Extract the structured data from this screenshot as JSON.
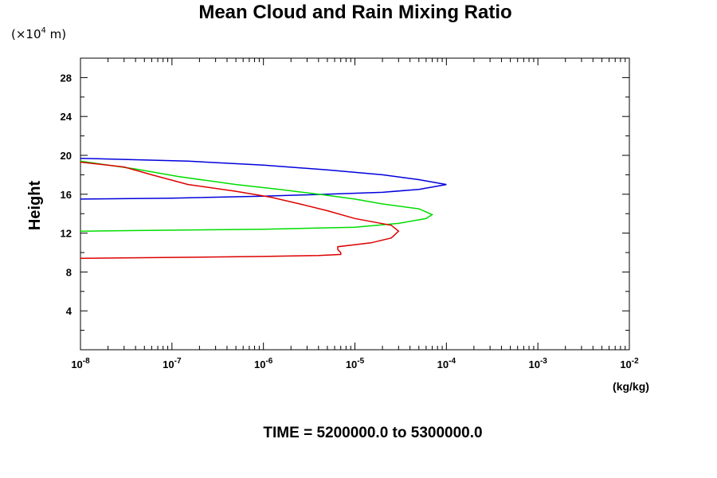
{
  "chart_data": {
    "type": "line",
    "title": "Mean Cloud and Rain Mixing Ratio",
    "y_units_label": "(×10",
    "y_units_exp": "4",
    "y_units_tail": " m)",
    "ylabel": "Height",
    "xlabel": "(kg/kg)",
    "footer": "TIME = 5200000.0 to 5300000.0",
    "xscale": "log",
    "xlim": [
      1e-08,
      0.01
    ],
    "ylim": [
      0,
      30
    ],
    "x_ticks": [
      {
        "base": "10",
        "exp": "-8"
      },
      {
        "base": "10",
        "exp": "-7"
      },
      {
        "base": "10",
        "exp": "-6"
      },
      {
        "base": "10",
        "exp": "-5"
      },
      {
        "base": "10",
        "exp": "-4"
      },
      {
        "base": "10",
        "exp": "-3"
      },
      {
        "base": "10",
        "exp": "-2"
      }
    ],
    "y_ticks": [
      "4",
      "8",
      "12",
      "16",
      "20",
      "24",
      "28"
    ],
    "series": [
      {
        "color": "#0000dd",
        "points": [
          [
            1e-08,
            15.5
          ],
          [
            1e-07,
            15.6
          ],
          [
            1e-06,
            15.8
          ],
          [
            5e-06,
            16.0
          ],
          [
            2e-05,
            16.2
          ],
          [
            5e-05,
            16.5
          ],
          [
            0.0001,
            17.0
          ],
          [
            5e-05,
            17.5
          ],
          [
            2e-05,
            18.0
          ],
          [
            5e-06,
            18.5
          ],
          [
            1e-06,
            19.0
          ],
          [
            1.5e-07,
            19.4
          ],
          [
            1e-08,
            19.7
          ]
        ]
      },
      {
        "color": "#00dd00",
        "points": [
          [
            1e-08,
            12.2
          ],
          [
            1e-07,
            12.3
          ],
          [
            1e-06,
            12.4
          ],
          [
            1e-05,
            12.6
          ],
          [
            3e-05,
            13.0
          ],
          [
            6e-05,
            13.5
          ],
          [
            7e-05,
            13.9
          ],
          [
            5e-05,
            14.5
          ],
          [
            2e-05,
            15.0
          ],
          [
            1e-05,
            15.5
          ],
          [
            4e-06,
            16.0
          ],
          [
            1.5e-06,
            16.5
          ],
          [
            5e-07,
            17.0
          ],
          [
            1.2e-07,
            17.8
          ],
          [
            4e-08,
            18.6
          ],
          [
            1e-08,
            19.4
          ]
        ]
      },
      {
        "color": "#dd0000",
        "points": [
          [
            1e-08,
            9.4
          ],
          [
            1e-07,
            9.5
          ],
          [
            1e-06,
            9.6
          ],
          [
            4e-06,
            9.7
          ],
          [
            7e-06,
            9.8
          ],
          [
            7e-06,
            10.0
          ],
          [
            6.5e-06,
            10.3
          ],
          [
            6.5e-06,
            10.6
          ],
          [
            1.5e-05,
            11.0
          ],
          [
            2.5e-05,
            11.5
          ],
          [
            3e-05,
            12.2
          ],
          [
            2.5e-05,
            12.8
          ],
          [
            1e-05,
            13.5
          ],
          [
            5e-06,
            14.3
          ],
          [
            2.5e-06,
            15.0
          ],
          [
            1.2e-06,
            15.7
          ],
          [
            5e-07,
            16.3
          ],
          [
            1.5e-07,
            17.0
          ],
          [
            6e-08,
            18.0
          ],
          [
            3e-08,
            18.8
          ],
          [
            1e-08,
            19.3
          ]
        ]
      }
    ]
  }
}
